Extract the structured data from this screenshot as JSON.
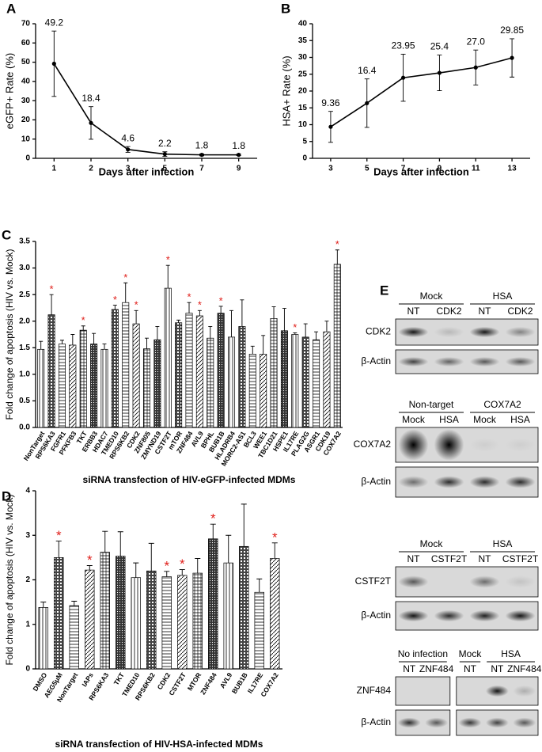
{
  "chart_data": [
    {
      "panel": "A",
      "type": "line",
      "y_label": "eGFP+ Rate (%)",
      "x_label": "Days after infection",
      "categories": [
        "1",
        "2",
        "3",
        "5",
        "7",
        "9"
      ],
      "values": [
        49.2,
        18.4,
        4.6,
        2.2,
        1.8,
        1.8
      ],
      "errors": [
        17,
        8.5,
        1.5,
        1.2,
        0.5,
        0.4
      ],
      "color": "#000000",
      "ylim": [
        0,
        70
      ],
      "yticks": [
        0,
        10,
        20,
        30,
        40,
        50,
        60,
        70
      ]
    },
    {
      "panel": "B",
      "type": "line",
      "y_label": "HSA+ Rate (%)",
      "x_label": "Days after infection",
      "categories": [
        "3",
        "5",
        "7",
        "9",
        "11",
        "13"
      ],
      "values": [
        9.36,
        16.4,
        23.95,
        25.4,
        27.0,
        29.85
      ],
      "value_labels": [
        "9.36",
        "16.4",
        "23.95",
        "25.4",
        "27.0",
        "29.85"
      ],
      "errors": [
        4.6,
        7.2,
        7,
        5.3,
        5.2,
        5.7
      ],
      "color": "#000000",
      "ylim": [
        0,
        40
      ],
      "yticks": [
        0,
        5,
        10,
        15,
        20,
        25,
        30,
        35,
        40
      ]
    },
    {
      "panel": "C",
      "type": "bar",
      "y_label": "Fold change of apoptosis (HIV vs. Mock)",
      "x_label": "siRNA transfection of HIV-eGFP-infected MDMs",
      "categories": [
        "NonTarget",
        "RPS6KA3",
        "FGFR1",
        "PFKFB3",
        "TKT",
        "ERBB3",
        "HDAC7",
        "TMED10",
        "RPS6KB2",
        "CDK2",
        "ZNF805",
        "ZMYND19",
        "CSTF2T",
        "mTOR",
        "ZNF484",
        "AVL9",
        "BPHL",
        "BUB1B",
        "HLADRB4",
        "MORC2-AS1",
        "BCL3",
        "WEE1",
        "TBC1D21",
        "HSPE1",
        "IL17RE",
        "PLAG2G",
        "ASGR1",
        "CDK19",
        "COX7A2"
      ],
      "values": [
        1.47,
        2.12,
        1.57,
        1.55,
        1.83,
        1.57,
        1.47,
        2.22,
        2.35,
        1.95,
        1.48,
        1.65,
        2.62,
        1.97,
        2.15,
        2.1,
        1.68,
        2.15,
        1.7,
        1.9,
        1.38,
        1.38,
        2.05,
        1.82,
        1.75,
        1.7,
        1.65,
        1.8,
        3.07
      ],
      "errors": [
        0.15,
        0.38,
        0.07,
        0.2,
        0.08,
        0.2,
        0.1,
        0.08,
        0.37,
        0.25,
        0.2,
        0.25,
        0.43,
        0.05,
        0.2,
        0.1,
        0.22,
        0.13,
        0.5,
        0.5,
        0.15,
        0.35,
        0.22,
        0.42,
        0.03,
        0.25,
        0.15,
        0.2,
        0.27
      ],
      "annotations": [
        null,
        "*",
        null,
        null,
        "*",
        null,
        null,
        "*",
        "*",
        "*",
        null,
        null,
        "*",
        null,
        "*",
        "*",
        null,
        "*",
        null,
        null,
        null,
        null,
        null,
        null,
        "*",
        null,
        null,
        null,
        "*"
      ],
      "ylim": [
        0,
        3.5
      ],
      "yticks": [
        {
          "value": 0,
          "label": "0.0"
        },
        {
          "value": 0.5,
          "label": "0.5"
        },
        {
          "value": 1,
          "label": "1.0"
        },
        {
          "value": 1.5,
          "label": "1.5"
        },
        {
          "value": 2,
          "label": "2.0"
        },
        {
          "value": 2.5,
          "label": "2.5"
        },
        {
          "value": 3,
          "label": "3.0"
        },
        {
          "value": 3.5,
          "label": "3.5"
        }
      ]
    },
    {
      "panel": "D",
      "type": "bar",
      "y_label": "Fold change of apoptosis (HIV vs. Mock)",
      "x_label": "siRNA transfection of HIV-HSA-infected MDMs",
      "categories": [
        "DMSO",
        "AEG5μM",
        "NonTarget",
        "IAPs",
        "RPS6KA3",
        "TKT",
        "TMED10",
        "RPS6KB2",
        "CDK2",
        "CSTF2T",
        "MTOR",
        "ZNF484",
        "AVL9",
        "BUB1B",
        "IL17RE",
        "COX7A2"
      ],
      "values": [
        1.38,
        2.5,
        1.42,
        2.22,
        2.62,
        2.53,
        2.05,
        2.2,
        2.07,
        2.1,
        2.15,
        2.92,
        2.38,
        2.75,
        1.72,
        2.48
      ],
      "errors": [
        0.12,
        0.37,
        0.1,
        0.1,
        0.47,
        0.55,
        0.33,
        0.62,
        0.12,
        0.13,
        0.33,
        0.33,
        0.62,
        0.95,
        0.3,
        0.35
      ],
      "annotations": [
        null,
        "*",
        null,
        "*",
        null,
        null,
        null,
        null,
        "*",
        "*",
        null,
        "*",
        null,
        null,
        null,
        "*"
      ],
      "ylim": [
        0,
        4
      ],
      "yticks": [
        0,
        1,
        2,
        3,
        4
      ]
    }
  ],
  "blot_panel": "E",
  "blots": [
    {
      "groups": [
        {
          "label": "Mock",
          "lanes": [
            "NT",
            "CDK2"
          ]
        },
        {
          "label": "HSA",
          "lanes": [
            "NT",
            "CDK2"
          ]
        }
      ],
      "rows": [
        "CDK2",
        "β-Actin"
      ]
    },
    {
      "groups": [
        {
          "label": "Non-target",
          "lanes": [
            "Mock",
            "HSA"
          ]
        },
        {
          "label": "COX7A2",
          "lanes": [
            "Mock",
            "HSA"
          ]
        }
      ],
      "rows": [
        "COX7A2",
        "β-Actin"
      ]
    },
    {
      "groups": [
        {
          "label": "Mock",
          "lanes": [
            "NT",
            "CSTF2T"
          ]
        },
        {
          "label": "HSA",
          "lanes": [
            "NT",
            "CSTF2T"
          ]
        }
      ],
      "rows": [
        "CSTF2T",
        "β-Actin"
      ]
    },
    {
      "groups": [
        {
          "label": "No infection",
          "lanes": [
            "NT",
            "ZNF484"
          ]
        },
        {
          "label": "Mock",
          "lanes": [
            "NT"
          ]
        },
        {
          "label": "HSA",
          "lanes": [
            "NT",
            "ZNF484"
          ]
        }
      ],
      "rows": [
        "ZNF484",
        "β-Actin"
      ]
    }
  ]
}
